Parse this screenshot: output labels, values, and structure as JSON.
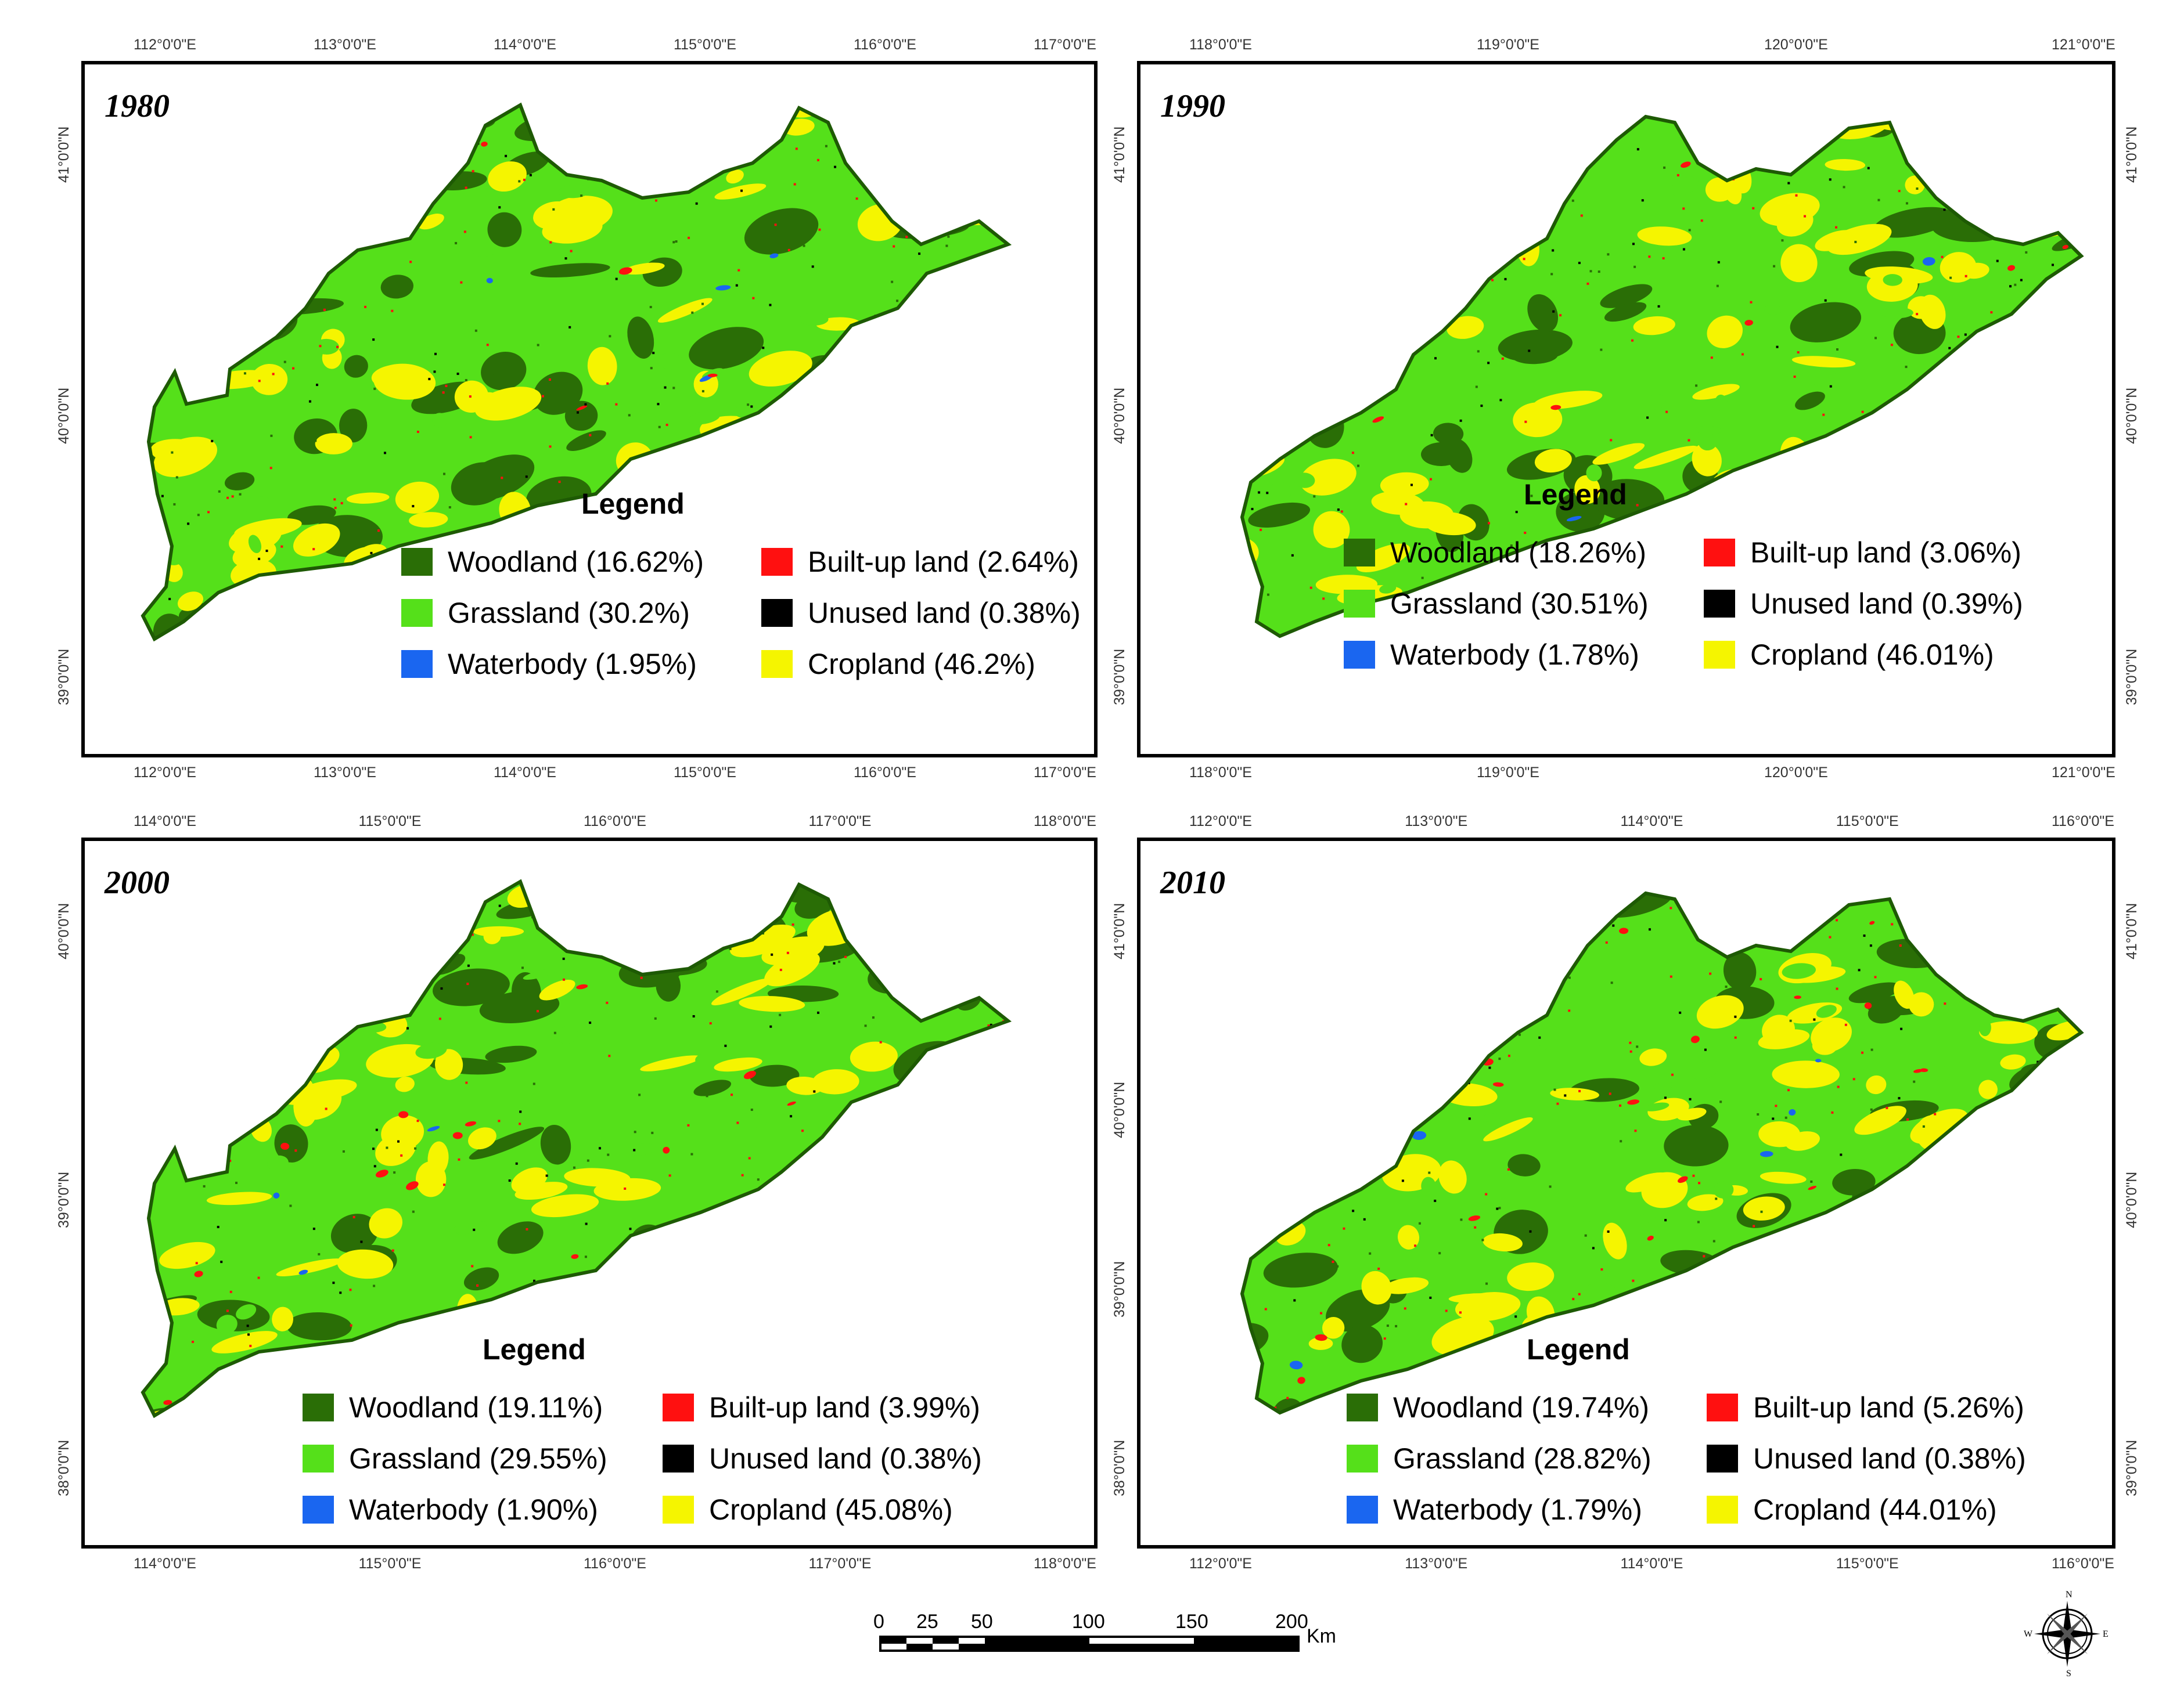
{
  "panels": [
    {
      "year": "1980",
      "top_ticks": [
        "112°0'0\"E",
        "113°0'0\"E",
        "114°0'0\"E",
        "115°0'0\"E",
        "116°0'0\"E",
        "117°0'0\"E"
      ],
      "bottom_ticks": [
        "112°0'0\"E",
        "113°0'0\"E",
        "114°0'0\"E",
        "115°0'0\"E",
        "116°0'0\"E",
        "117°0'0\"E"
      ],
      "left_ticks": [
        "41°0'0\"N",
        "40°0'0\"N",
        "39°0'0\"N"
      ],
      "right_ticks": [],
      "legend_title": "Legend",
      "legend": [
        {
          "label": "Woodland (16.62%)",
          "key": "woodland"
        },
        {
          "label": "Built-up land (2.64%)",
          "key": "builtup"
        },
        {
          "label": "Grassland (30.2%)",
          "key": "grassland"
        },
        {
          "label": "Unused land (0.38%)",
          "key": "unused"
        },
        {
          "label": "Waterbody (1.95%)",
          "key": "waterbody"
        },
        {
          "label": "Cropland (46.2%)",
          "key": "cropland"
        }
      ]
    },
    {
      "year": "1990",
      "top_ticks": [
        "118°0'0\"E",
        "119°0'0\"E",
        "120°0'0\"E",
        "121°0'0\"E"
      ],
      "bottom_ticks": [
        "118°0'0\"E",
        "119°0'0\"E",
        "120°0'0\"E",
        "121°0'0\"E"
      ],
      "left_ticks": [
        "41°0'0\"N",
        "40°0'0\"N",
        "39°0'0\"N"
      ],
      "right_ticks": [
        "41°0'0\"N",
        "40°0'0\"N",
        "39°0'0\"N"
      ],
      "legend_title": "Legend",
      "legend": [
        {
          "label": "Woodland (18.26%)",
          "key": "woodland"
        },
        {
          "label": "Built-up land (3.06%)",
          "key": "builtup"
        },
        {
          "label": "Grassland (30.51%)",
          "key": "grassland"
        },
        {
          "label": "Unused land (0.39%)",
          "key": "unused"
        },
        {
          "label": "Waterbody (1.78%)",
          "key": "waterbody"
        },
        {
          "label": "Cropland (46.01%)",
          "key": "cropland"
        }
      ]
    },
    {
      "year": "2000",
      "top_ticks": [
        "114°0'0\"E",
        "115°0'0\"E",
        "116°0'0\"E",
        "117°0'0\"E",
        "118°0'0\"E"
      ],
      "bottom_ticks": [
        "114°0'0\"E",
        "115°0'0\"E",
        "116°0'0\"E",
        "117°0'0\"E",
        "118°0'0\"E"
      ],
      "left_ticks": [
        "40°0'0\"N",
        "39°0'0\"N",
        "38°0'0\"N"
      ],
      "right_ticks": [],
      "legend_title": "Legend",
      "legend": [
        {
          "label": "Woodland (19.11%)",
          "key": "woodland"
        },
        {
          "label": "Built-up land (3.99%)",
          "key": "builtup"
        },
        {
          "label": "Grassland (29.55%)",
          "key": "grassland"
        },
        {
          "label": "Unused land (0.38%)",
          "key": "unused"
        },
        {
          "label": "Waterbody (1.90%)",
          "key": "waterbody"
        },
        {
          "label": "Cropland (45.08%)",
          "key": "cropland"
        }
      ]
    },
    {
      "year": "2010",
      "top_ticks": [
        "112°0'0\"E",
        "113°0'0\"E",
        "114°0'0\"E",
        "115°0'0\"E",
        "116°0'0\"E"
      ],
      "bottom_ticks": [
        "112°0'0\"E",
        "113°0'0\"E",
        "114°0'0\"E",
        "115°0'0\"E",
        "116°0'0\"E"
      ],
      "left_ticks": [
        "41°0'0\"N",
        "40°0'0\"N",
        "39°0'0\"N",
        "38°0'0\"N"
      ],
      "right_ticks": [
        "41°0'0\"N",
        "40°0'0\"N",
        "39°0'0\"N"
      ],
      "legend_title": "Legend",
      "legend": [
        {
          "label": "Woodland (19.74%)",
          "key": "woodland"
        },
        {
          "label": "Built-up land (5.26%)",
          "key": "builtup"
        },
        {
          "label": "Grassland (28.82%)",
          "key": "grassland"
        },
        {
          "label": "Unused land (0.38%)",
          "key": "unused"
        },
        {
          "label": "Waterbody (1.79%)",
          "key": "waterbody"
        },
        {
          "label": "Cropland (44.01%)",
          "key": "cropland"
        }
      ]
    }
  ],
  "colors": {
    "woodland": "#2a6e06",
    "grassland": "#55e01a",
    "waterbody": "#1a66f0",
    "builtup": "#ff1010",
    "unused": "#000000",
    "cropland": "#f5f500"
  },
  "scale": {
    "labels": [
      "0",
      "25",
      "50",
      "100",
      "150",
      "200"
    ],
    "unit": "Km"
  },
  "compass": {
    "n": "N",
    "s": "S",
    "e": "E",
    "w": "W"
  }
}
